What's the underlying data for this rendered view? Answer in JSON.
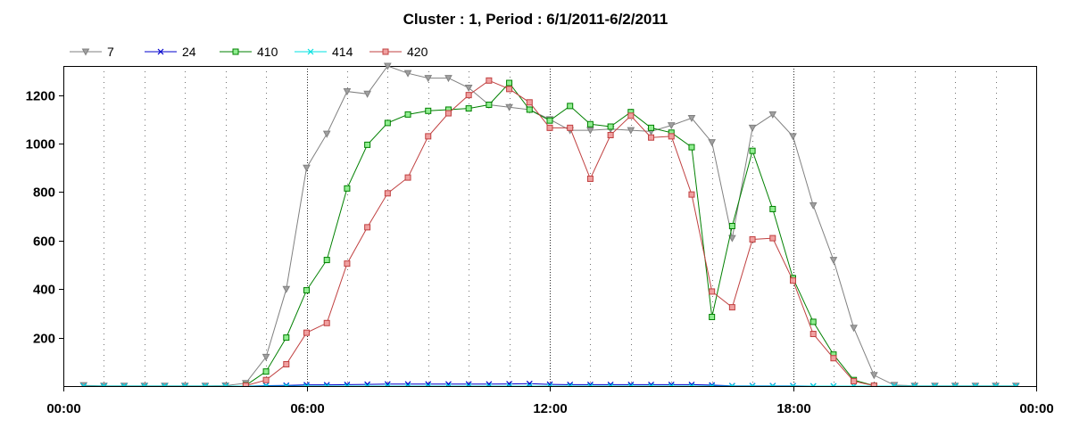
{
  "chart_data": {
    "type": "line",
    "title": "Cluster : 1, Period : 6/1/2011-6/2/2011",
    "xlabel": "",
    "ylabel": "",
    "x_unit": "hours",
    "xlim": [
      0,
      24
    ],
    "ylim": [
      0,
      1320
    ],
    "x_ticks": [
      {
        "v": 0,
        "label": "00:00"
      },
      {
        "v": 6,
        "label": "06:00"
      },
      {
        "v": 12,
        "label": "12:00"
      },
      {
        "v": 18,
        "label": "18:00"
      },
      {
        "v": 24,
        "label": "00:00"
      }
    ],
    "y_ticks": [
      200,
      400,
      600,
      800,
      1000,
      1200
    ],
    "grid": "dotted vertical lines every hour, heavier at 06:00, 12:00, 18:00",
    "legend_position": "top-left",
    "x": [
      0.5,
      1,
      1.5,
      2,
      2.5,
      3,
      3.5,
      4,
      4.5,
      5,
      5.5,
      6,
      6.5,
      7,
      7.5,
      8,
      8.5,
      9,
      9.5,
      10,
      10.5,
      11,
      11.5,
      12,
      12.5,
      13,
      13.5,
      14,
      14.5,
      15,
      15.5,
      16,
      16.5,
      17,
      17.5,
      18,
      18.5,
      19,
      19.5,
      20,
      20.5,
      21,
      21.5,
      22,
      22.5,
      23,
      23.5
    ],
    "series": [
      {
        "name": "7",
        "color": "#808080",
        "marker": "triangle-down",
        "values": [
          3,
          1,
          1,
          1,
          1,
          1,
          1,
          2,
          12,
          120,
          400,
          900,
          1040,
          1215,
          1205,
          1320,
          1290,
          1270,
          1270,
          1230,
          1160,
          1150,
          1140,
          1100,
          1055,
          1055,
          1060,
          1055,
          1050,
          1075,
          1105,
          1005,
          610,
          1065,
          1120,
          1030,
          745,
          520,
          240,
          45,
          4,
          1,
          1,
          1,
          1,
          1,
          1
        ]
      },
      {
        "name": "24",
        "color": "#0000cc",
        "marker": "x",
        "values": [
          0,
          0,
          0,
          0,
          0,
          0,
          0,
          0,
          0,
          2,
          3,
          5,
          5,
          6,
          7,
          8,
          8,
          8,
          8,
          8,
          8,
          9,
          10,
          7,
          6,
          6,
          6,
          6,
          6,
          6,
          6,
          4,
          1,
          1,
          1,
          1,
          0,
          0,
          0,
          0,
          0,
          0,
          0,
          0,
          0,
          0,
          0
        ]
      },
      {
        "name": "410",
        "color": "#008000",
        "marker": "square",
        "values": [
          null,
          null,
          null,
          null,
          null,
          null,
          null,
          null,
          3,
          60,
          200,
          395,
          520,
          815,
          995,
          1085,
          1120,
          1135,
          1140,
          1145,
          1160,
          1250,
          1140,
          1095,
          1155,
          1080,
          1070,
          1130,
          1065,
          1045,
          985,
          285,
          660,
          970,
          730,
          445,
          265,
          130,
          25,
          2,
          null,
          null,
          null,
          null,
          null,
          null,
          null
        ]
      },
      {
        "name": "414",
        "color": "#00e0e0",
        "marker": "x",
        "values": [
          0,
          0,
          0,
          0,
          0,
          0,
          0,
          0,
          0,
          0,
          0,
          0,
          0,
          0,
          0,
          0,
          0,
          0,
          0,
          0,
          0,
          0,
          0,
          0,
          0,
          0,
          0,
          0,
          0,
          0,
          0,
          0,
          0,
          0,
          0,
          0,
          0,
          0,
          0,
          0,
          0,
          0,
          0,
          0,
          0,
          0,
          0
        ]
      },
      {
        "name": "420",
        "color": "#c04040",
        "marker": "square",
        "values": [
          null,
          null,
          null,
          null,
          null,
          null,
          null,
          null,
          2,
          25,
          90,
          220,
          260,
          505,
          655,
          795,
          860,
          1030,
          1125,
          1200,
          1260,
          1225,
          1170,
          1065,
          1065,
          855,
          1035,
          1115,
          1025,
          1030,
          790,
          390,
          325,
          605,
          610,
          435,
          215,
          115,
          20,
          2,
          null,
          null,
          null,
          null,
          null,
          null,
          null
        ]
      }
    ]
  },
  "colors": {
    "background": "#ffffff",
    "axis": "#000000",
    "grid": "#000000",
    "marker_fills": {
      "7": "#a0a0a0",
      "410": "#90ee90",
      "420": "#f0a0a0"
    }
  }
}
